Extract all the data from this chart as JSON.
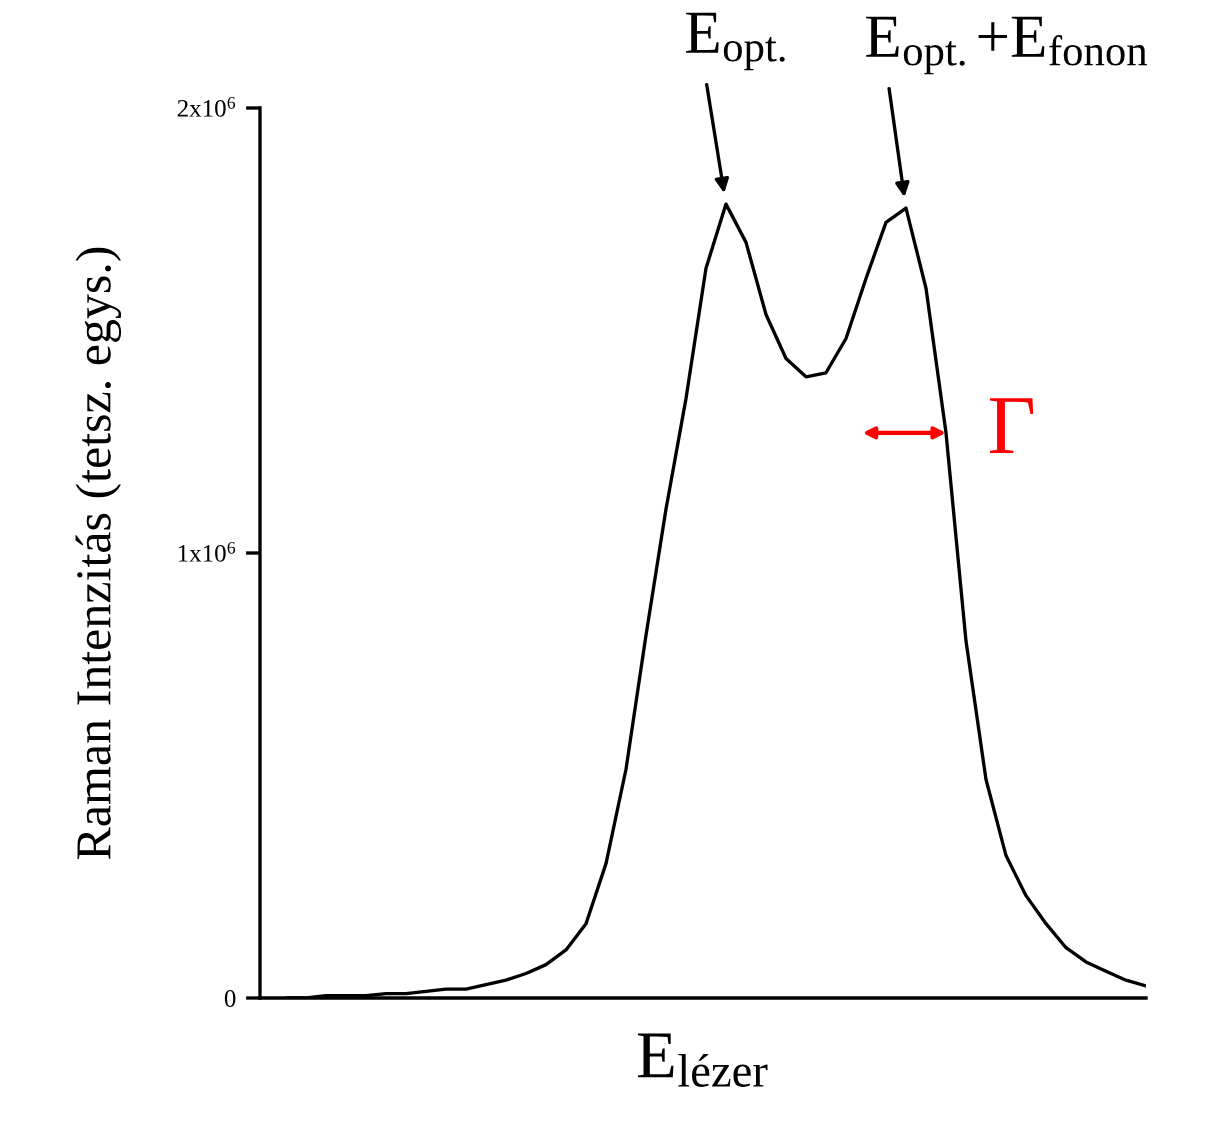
{
  "chart_data": {
    "type": "line",
    "xlabel": "E$_{lézer}$",
    "ylabel": "Raman Intenzitás (tetsz. egys.)",
    "categories": [
      null,
      null,
      null,
      null,
      null,
      null,
      null,
      null,
      null,
      null,
      null,
      null,
      null,
      null,
      null,
      null,
      null,
      null,
      null,
      null,
      null,
      null,
      null,
      null,
      null,
      null,
      null,
      null,
      null,
      null,
      null,
      null,
      null,
      null,
      null,
      null,
      null,
      null,
      null,
      null,
      null,
      null,
      null,
      null
    ],
    "series": [
      {
        "color": "#000000",
        "values": [
          0,
          0,
          5000,
          5000,
          5000,
          10000,
          10000,
          15000,
          20000,
          20000,
          30000,
          40000,
          55000,
          75000,
          108000,
          167000,
          302000,
          514000,
          815000,
          1099000,
          1347000,
          1640000,
          1784000,
          1698000,
          1536000,
          1437000,
          1396000,
          1405000,
          1482000,
          1617000,
          1743000,
          1775000,
          1595000,
          1270000,
          802000,
          491000,
          320000,
          230000,
          167000,
          113000,
          81000,
          60000,
          40000,
          27000
        ]
      }
    ],
    "ylim": [
      0,
      2000000
    ],
    "yticks": [
      {
        "value": 0,
        "label": "0"
      },
      {
        "value": 1000000,
        "label": "1x10$^{6}$"
      },
      {
        "value": 2000000,
        "label": "2x10$^{6}$"
      }
    ],
    "tick_labels": "y",
    "annotations": [
      "E$_{opt.}$",
      "E$_{opt.}$+E$_{fonon}$",
      "Γ"
    ]
  }
}
